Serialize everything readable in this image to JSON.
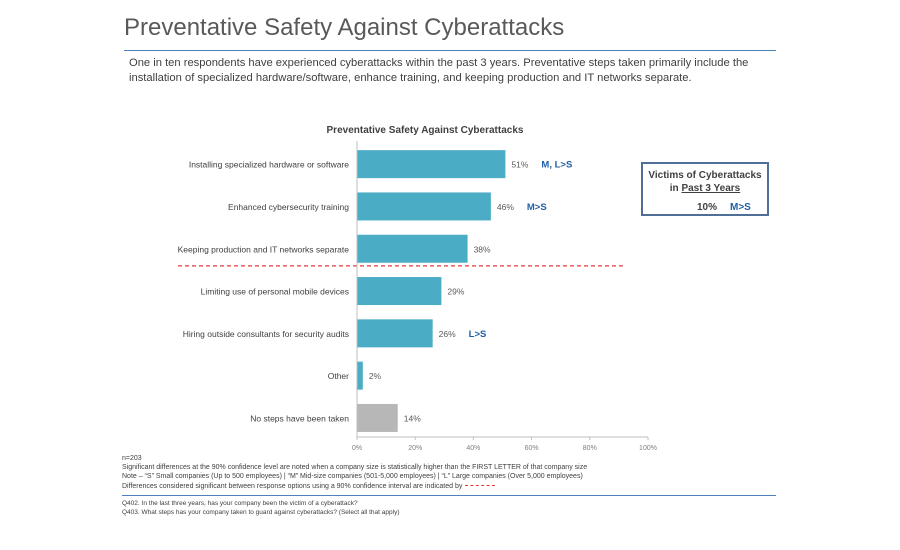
{
  "page": {
    "title": "Preventative Safety Against Cyberattacks",
    "summary": "One in ten respondents have experienced cyberattacks within the past 3 years.  Preventative steps taken primarily include the installation of specialized hardware/software, enhance training, and keeping production and IT networks separate."
  },
  "chart_data": {
    "type": "bar",
    "orientation": "horizontal",
    "title": "Preventative Safety Against Cyberattacks",
    "categories": [
      "Installing specialized hardware or software",
      "Enhanced cybersecurity training",
      "Keeping production and IT networks separate",
      "Limiting use of personal mobile devices",
      "Hiring outside consultants for security audits",
      "Other",
      "No steps have been taken"
    ],
    "values": [
      51,
      46,
      38,
      29,
      26,
      2,
      14
    ],
    "value_labels": [
      "51%",
      "46%",
      "38%",
      "29%",
      "26%",
      "2%",
      "14%"
    ],
    "significance": [
      "M, L>S",
      "M>S",
      "",
      "",
      "L>S",
      "",
      ""
    ],
    "bar_colors": [
      "#4bacc6",
      "#4bacc6",
      "#4bacc6",
      "#4bacc6",
      "#4bacc6",
      "#4bacc6",
      "#b7b7b7"
    ],
    "xlim": [
      0,
      100
    ],
    "xticks": [
      0,
      20,
      40,
      60,
      80,
      100
    ],
    "xtick_labels": [
      "0%",
      "20%",
      "40%",
      "60%",
      "80%",
      "100%"
    ],
    "significant_break_after_index": 2,
    "grid": false
  },
  "colors": {
    "bar": "#4bacc6",
    "bar_none": "#b7b7b7",
    "significance_text": "#1f5fa6",
    "divider": "#e03c3c",
    "rule": "#4f81bd"
  },
  "victims": {
    "title_line1": "Victims of Cyberattacks",
    "title_prefix": "in ",
    "title_underlined": "Past 3 Years",
    "value": "10%",
    "significance": "M>S"
  },
  "notes": {
    "n": "n=203",
    "line1": "Significant differences at the 90% confidence level are noted when a company size is statistically higher than the FIRST LETTER of that company size",
    "line2": "Note – “S” Small companies (Up to 500 employees) | “M” Mid-size companies (501-5,000 employees) | “L” Large companies (Over 5,000 employees)",
    "line3": "Differences considered significant between response options using a 90% confidence interval are indicated by"
  },
  "questions": {
    "q402": "Q402. In the last three years, has your company been the victim of a cyberattack?",
    "q403": "Q403. What steps has your company taken to guard against cyberattacks? (Select all that apply)"
  }
}
